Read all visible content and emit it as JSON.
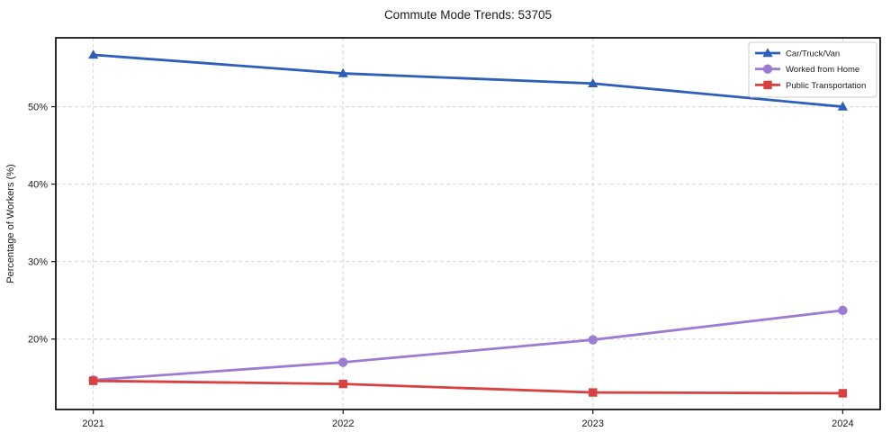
{
  "page": {
    "background": "#ffffff"
  },
  "chart_data": {
    "type": "line",
    "title": "Commute Mode Trends: 53705",
    "xlabel": "",
    "ylabel": "Percentage of Workers (%)",
    "x": [
      2021,
      2022,
      2023,
      2024
    ],
    "x_tick_labels": [
      "2021",
      "2022",
      "2023",
      "2024"
    ],
    "series": [
      {
        "name": "Car/Truck/Van",
        "color": "#2b5fba",
        "marker": "triangle",
        "values": [
          56.7,
          54.3,
          53.0,
          50.0
        ]
      },
      {
        "name": "Worked from Home",
        "color": "#9c7bd2",
        "marker": "circle",
        "values": [
          14.7,
          17.0,
          19.9,
          23.7
        ]
      },
      {
        "name": "Public Transportation",
        "color": "#d94040",
        "marker": "square",
        "values": [
          14.6,
          14.2,
          13.1,
          13.0
        ]
      }
    ],
    "y_ticks": [
      20,
      30,
      40,
      50
    ],
    "y_tick_suffix": "%",
    "xlim": [
      2020.85,
      2024.15
    ],
    "ylim": [
      10.9,
      58.9
    ],
    "grid": true,
    "legend_position": "top-right"
  },
  "style": {
    "grid_color": "#d5d5d5",
    "axis_color": "#151515",
    "text_color": "#1a1a1a",
    "legend_border": "#cccccc",
    "background": "#ffffff"
  }
}
